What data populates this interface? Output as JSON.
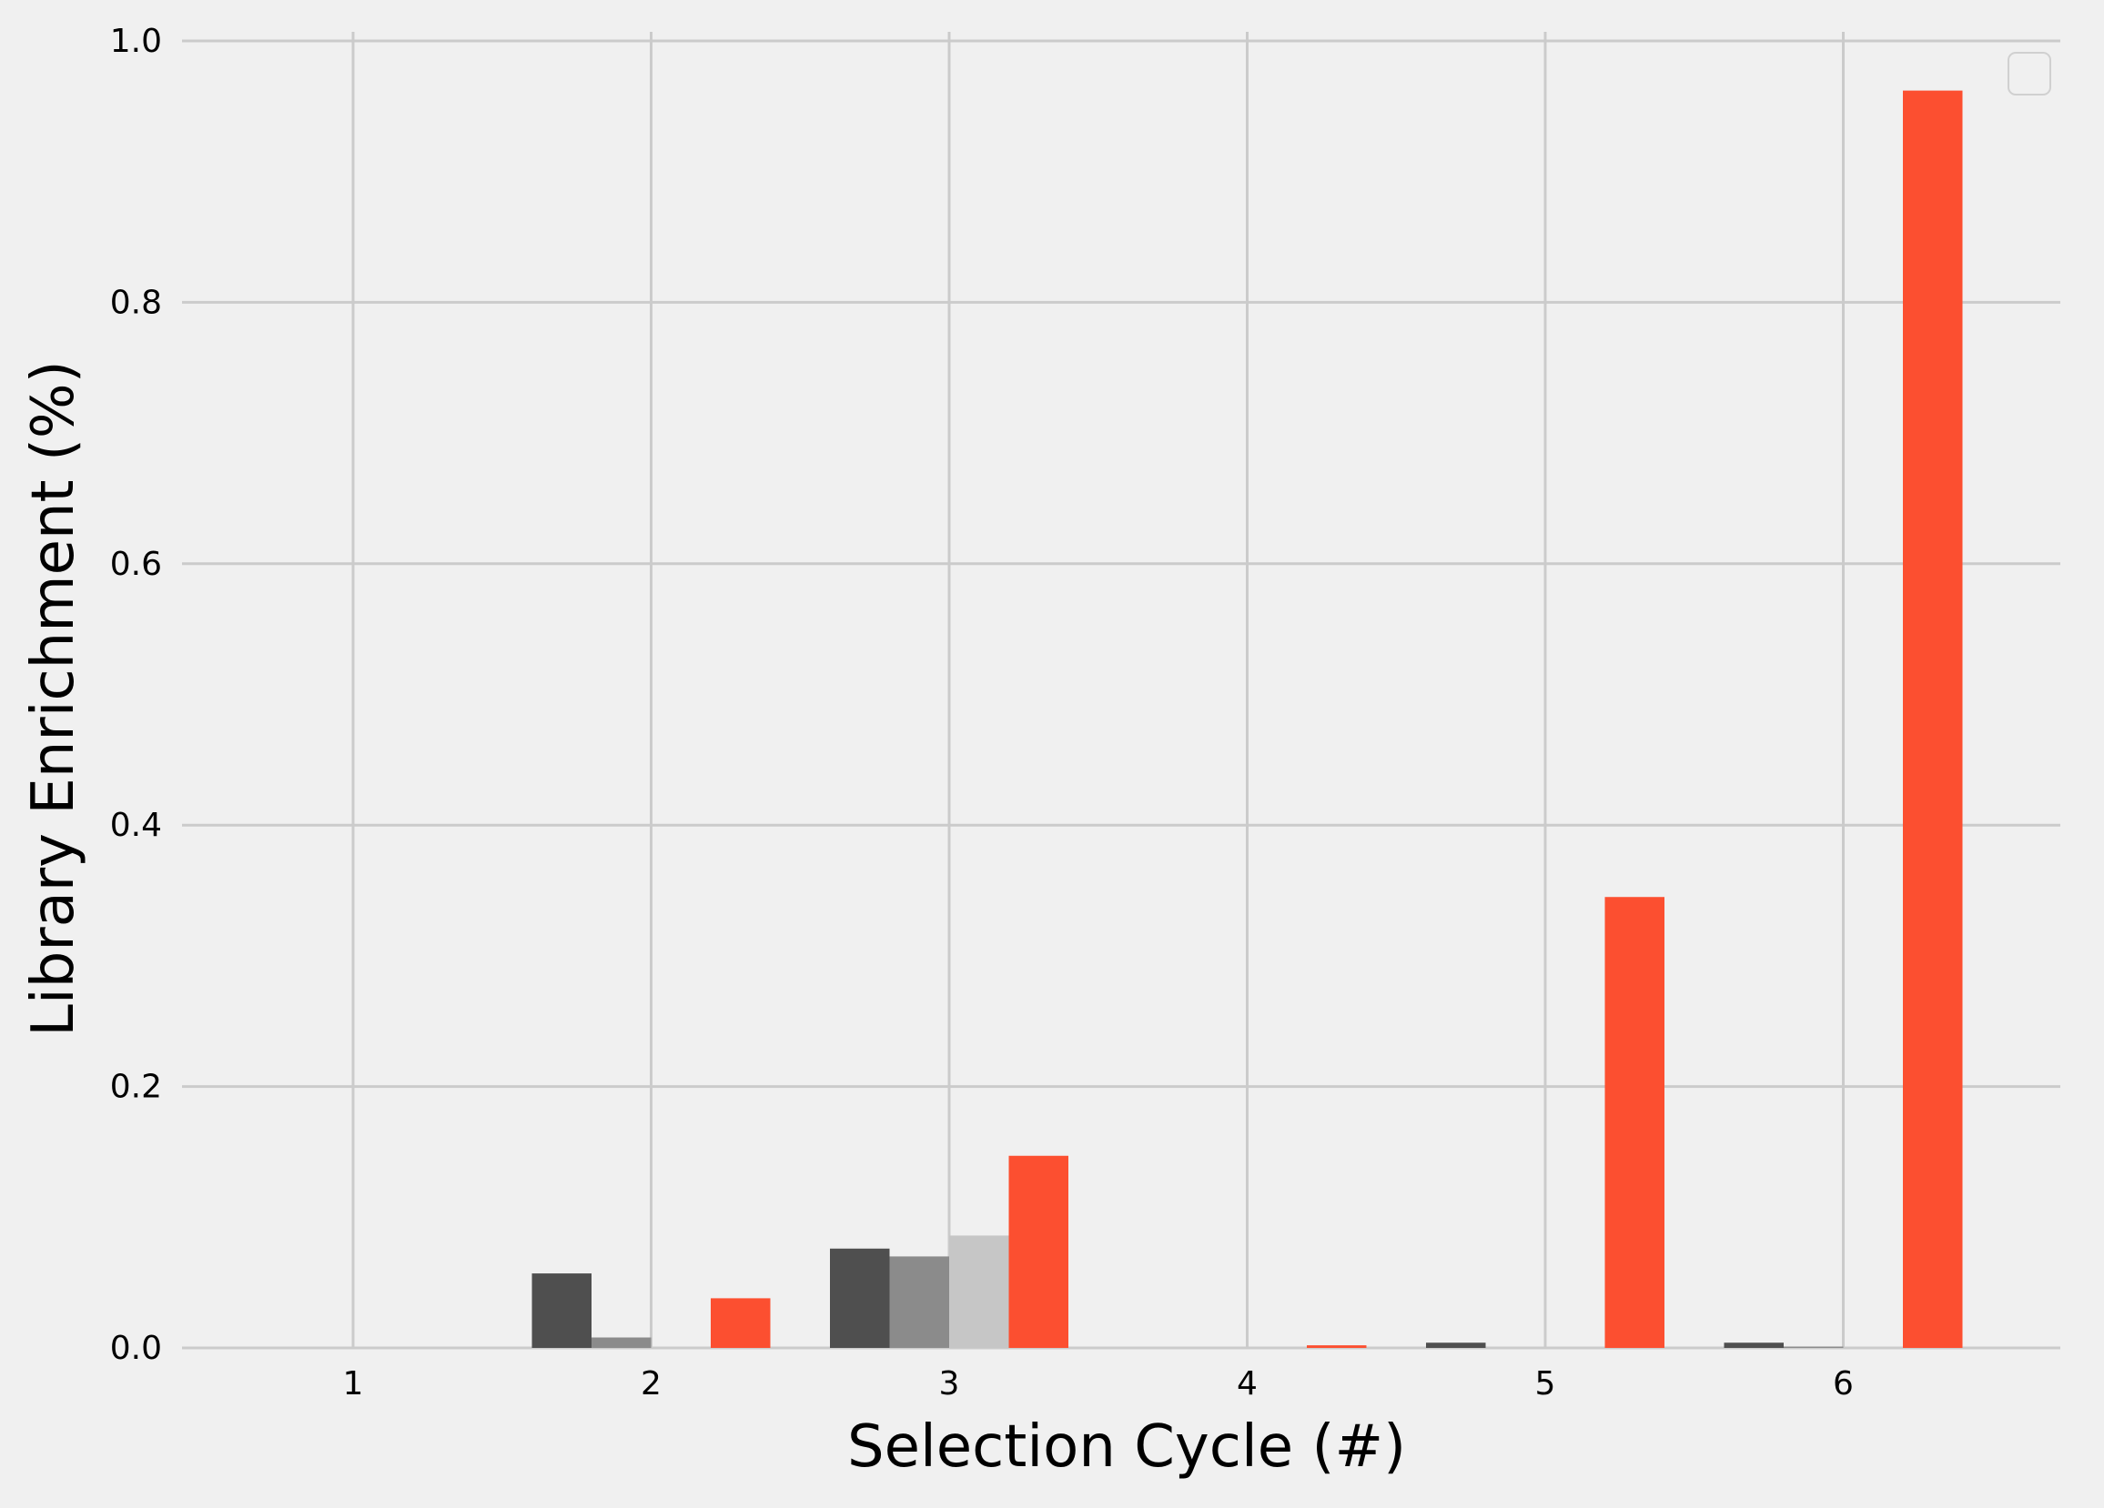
{
  "chart_data": {
    "type": "bar",
    "categories": [
      1,
      2,
      3,
      4,
      5,
      6
    ],
    "xlabel": "Selection Cycle (#)",
    "ylabel": "Library Enrichment (%)",
    "ylim": [
      0,
      1.0
    ],
    "yticks": [
      0.0,
      0.2,
      0.4,
      0.6,
      0.8,
      1.0
    ],
    "grid": true,
    "legend": {
      "placement": "top-right",
      "entries": []
    },
    "series": [
      {
        "color": "#4f4f4f",
        "values": [
          0,
          0.057,
          0.076,
          0,
          0.004,
          0.004
        ]
      },
      {
        "color": "#8b8b8b",
        "values": [
          0,
          0.008,
          0.07,
          0,
          0,
          0.001
        ]
      },
      {
        "color": "#c6c6c6",
        "values": [
          0,
          0,
          0.086,
          0,
          0,
          0
        ]
      },
      {
        "color": "#fc4f30",
        "values": [
          0,
          0.038,
          0.147,
          0.002,
          0.345,
          0.962
        ]
      }
    ]
  }
}
